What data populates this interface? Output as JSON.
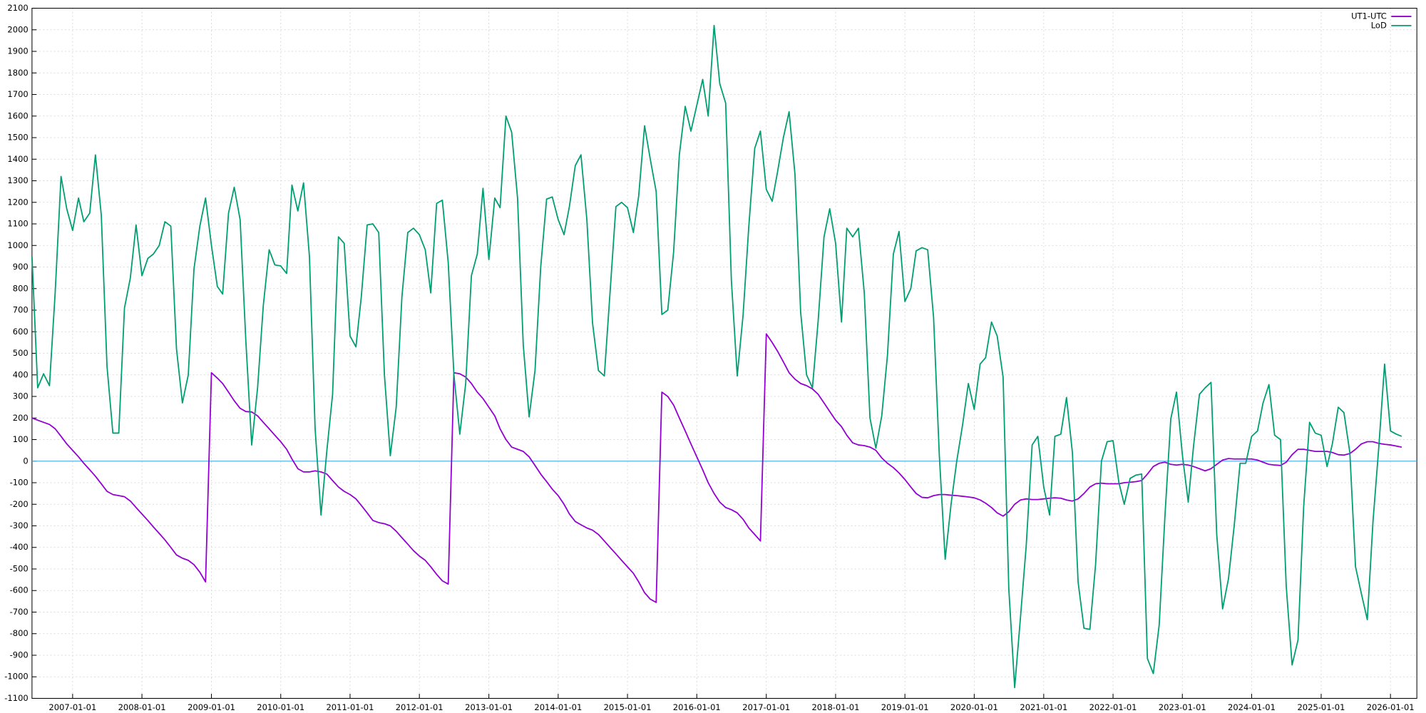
{
  "chart_data": {
    "type": "line",
    "x": [
      "2006-06-01",
      "2006-07-01",
      "2006-08-01",
      "2006-09-01",
      "2006-10-01",
      "2006-11-01",
      "2006-12-01",
      "2007-01-01",
      "2007-02-01",
      "2007-03-01",
      "2007-04-01",
      "2007-05-01",
      "2007-06-01",
      "2007-07-01",
      "2007-08-01",
      "2007-09-01",
      "2007-10-01",
      "2007-11-01",
      "2007-12-01",
      "2008-01-01",
      "2008-02-01",
      "2008-03-01",
      "2008-04-01",
      "2008-05-01",
      "2008-06-01",
      "2008-07-01",
      "2008-08-01",
      "2008-09-01",
      "2008-10-01",
      "2008-11-01",
      "2008-12-01",
      "2009-01-01",
      "2009-02-01",
      "2009-03-01",
      "2009-04-01",
      "2009-05-01",
      "2009-06-01",
      "2009-07-01",
      "2009-08-01",
      "2009-09-01",
      "2009-10-01",
      "2009-11-01",
      "2009-12-01",
      "2010-01-01",
      "2010-02-01",
      "2010-03-01",
      "2010-04-01",
      "2010-05-01",
      "2010-06-01",
      "2010-07-01",
      "2010-08-01",
      "2010-09-01",
      "2010-10-01",
      "2010-11-01",
      "2010-12-01",
      "2011-01-01",
      "2011-02-01",
      "2011-03-01",
      "2011-04-01",
      "2011-05-01",
      "2011-06-01",
      "2011-07-01",
      "2011-08-01",
      "2011-09-01",
      "2011-10-01",
      "2011-11-01",
      "2011-12-01",
      "2012-01-01",
      "2012-02-01",
      "2012-03-01",
      "2012-04-01",
      "2012-05-01",
      "2012-06-01",
      "2012-07-01",
      "2012-08-01",
      "2012-09-01",
      "2012-10-01",
      "2012-11-01",
      "2012-12-01",
      "2013-01-01",
      "2013-02-01",
      "2013-03-01",
      "2013-04-01",
      "2013-05-01",
      "2013-06-01",
      "2013-07-01",
      "2013-08-01",
      "2013-09-01",
      "2013-10-01",
      "2013-11-01",
      "2013-12-01",
      "2014-01-01",
      "2014-02-01",
      "2014-03-01",
      "2014-04-01",
      "2014-05-01",
      "2014-06-01",
      "2014-07-01",
      "2014-08-01",
      "2014-09-01",
      "2014-10-01",
      "2014-11-01",
      "2014-12-01",
      "2015-01-01",
      "2015-02-01",
      "2015-03-01",
      "2015-04-01",
      "2015-05-01",
      "2015-06-01",
      "2015-07-01",
      "2015-08-01",
      "2015-09-01",
      "2015-10-01",
      "2015-11-01",
      "2015-12-01",
      "2016-01-01",
      "2016-02-01",
      "2016-03-01",
      "2016-04-01",
      "2016-05-01",
      "2016-06-01",
      "2016-07-01",
      "2016-08-01",
      "2016-09-01",
      "2016-10-01",
      "2016-11-01",
      "2016-12-01",
      "2017-01-01",
      "2017-02-01",
      "2017-03-01",
      "2017-04-01",
      "2017-05-01",
      "2017-06-01",
      "2017-07-01",
      "2017-08-01",
      "2017-09-01",
      "2017-10-01",
      "2017-11-01",
      "2017-12-01",
      "2018-01-01",
      "2018-02-01",
      "2018-03-01",
      "2018-04-01",
      "2018-05-01",
      "2018-06-01",
      "2018-07-01",
      "2018-08-01",
      "2018-09-01",
      "2018-10-01",
      "2018-11-01",
      "2018-12-01",
      "2019-01-01",
      "2019-02-01",
      "2019-03-01",
      "2019-04-01",
      "2019-05-01",
      "2019-06-01",
      "2019-07-01",
      "2019-08-01",
      "2019-09-01",
      "2019-10-01",
      "2019-11-01",
      "2019-12-01",
      "2020-01-01",
      "2020-02-01",
      "2020-03-01",
      "2020-04-01",
      "2020-05-01",
      "2020-06-01",
      "2020-07-01",
      "2020-08-01",
      "2020-09-01",
      "2020-10-01",
      "2020-11-01",
      "2020-12-01",
      "2021-01-01",
      "2021-02-01",
      "2021-03-01",
      "2021-04-01",
      "2021-05-01",
      "2021-06-01",
      "2021-07-01",
      "2021-08-01",
      "2021-09-01",
      "2021-10-01",
      "2021-11-01",
      "2021-12-01",
      "2022-01-01",
      "2022-02-01",
      "2022-03-01",
      "2022-04-01",
      "2022-05-01",
      "2022-06-01",
      "2022-07-01",
      "2022-08-01",
      "2022-09-01",
      "2022-10-01",
      "2022-11-01",
      "2022-12-01",
      "2023-01-01",
      "2023-02-01",
      "2023-03-01",
      "2023-04-01",
      "2023-05-01",
      "2023-06-01",
      "2023-07-01",
      "2023-08-01",
      "2023-09-01",
      "2023-10-01",
      "2023-11-01",
      "2023-12-01",
      "2024-01-01",
      "2024-02-01",
      "2024-03-01",
      "2024-04-01",
      "2024-05-01",
      "2024-06-01",
      "2024-07-01",
      "2024-08-01",
      "2024-09-01",
      "2024-10-01",
      "2024-11-01",
      "2024-12-01",
      "2025-01-01",
      "2025-02-01",
      "2025-03-01",
      "2025-04-01",
      "2025-05-01",
      "2025-06-01",
      "2025-07-01",
      "2025-08-01",
      "2025-09-01",
      "2025-10-01",
      "2025-11-01",
      "2025-12-01",
      "2026-01-01",
      "2026-02-01",
      "2026-03-01"
    ],
    "series": [
      {
        "name": "UT1-UTC",
        "color": "#9400d3",
        "values": [
          200,
          190,
          180,
          170,
          150,
          115,
          80,
          50,
          20,
          -10,
          -40,
          -70,
          -105,
          -140,
          -155,
          -160,
          -165,
          -185,
          -215,
          -245,
          -275,
          -305,
          -335,
          -365,
          -400,
          -435,
          -450,
          -460,
          -480,
          -515,
          -560,
          410,
          385,
          360,
          320,
          280,
          245,
          230,
          228,
          210,
          180,
          150,
          120,
          90,
          55,
          10,
          -35,
          -50,
          -50,
          -45,
          -50,
          -60,
          -90,
          -120,
          -140,
          -155,
          -175,
          -205,
          -240,
          -275,
          -285,
          -290,
          -300,
          -325,
          -355,
          -385,
          -415,
          -440,
          -460,
          -490,
          -525,
          -555,
          -570,
          410,
          405,
          390,
          360,
          320,
          290,
          250,
          210,
          150,
          100,
          65,
          55,
          45,
          20,
          -20,
          -60,
          -95,
          -130,
          -160,
          -200,
          -245,
          -280,
          -295,
          -310,
          -320,
          -340,
          -370,
          -400,
          -430,
          -460,
          -490,
          -520,
          -560,
          -610,
          -640,
          -655,
          320,
          300,
          260,
          200,
          140,
          80,
          20,
          -40,
          -100,
          -150,
          -190,
          -215,
          -225,
          -240,
          -270,
          -310,
          -340,
          -370,
          590,
          550,
          510,
          460,
          410,
          380,
          360,
          350,
          335,
          310,
          270,
          230,
          190,
          160,
          120,
          85,
          75,
          72,
          65,
          50,
          15,
          -10,
          -30,
          -55,
          -85,
          -120,
          -150,
          -168,
          -170,
          -160,
          -155,
          -155,
          -158,
          -160,
          -163,
          -166,
          -170,
          -180,
          -195,
          -215,
          -240,
          -255,
          -235,
          -200,
          -180,
          -175,
          -178,
          -178,
          -175,
          -172,
          -170,
          -172,
          -180,
          -185,
          -175,
          -150,
          -120,
          -105,
          -102,
          -105,
          -105,
          -105,
          -100,
          -98,
          -95,
          -90,
          -60,
          -25,
          -10,
          -5,
          -15,
          -18,
          -15,
          -18,
          -25,
          -35,
          -45,
          -35,
          -15,
          5,
          12,
          10,
          10,
          10,
          10,
          5,
          -5,
          -15,
          -18,
          -20,
          -5,
          30,
          55,
          55,
          50,
          45,
          45,
          45,
          40,
          30,
          28,
          35,
          55,
          80,
          90,
          90,
          82,
          78,
          75,
          70,
          65
        ]
      },
      {
        "name": "LoD",
        "color": "#009e73",
        "values": [
          950,
          340,
          405,
          350,
          780,
          1320,
          1170,
          1070,
          1220,
          1110,
          1150,
          1420,
          1140,
          440,
          130,
          130,
          710,
          850,
          1095,
          860,
          940,
          960,
          1000,
          1110,
          1090,
          520,
          270,
          400,
          890,
          1090,
          1220,
          1000,
          810,
          775,
          1150,
          1270,
          1120,
          560,
          75,
          340,
          720,
          980,
          910,
          905,
          870,
          1280,
          1160,
          1290,
          950,
          150,
          -250,
          50,
          310,
          1040,
          1010,
          580,
          530,
          760,
          1095,
          1100,
          1060,
          400,
          25,
          250,
          760,
          1060,
          1080,
          1050,
          980,
          780,
          1195,
          1210,
          920,
          400,
          125,
          360,
          860,
          960,
          1265,
          935,
          1220,
          1175,
          1600,
          1525,
          1220,
          540,
          205,
          420,
          900,
          1215,
          1225,
          1120,
          1050,
          1180,
          1370,
          1420,
          1120,
          640,
          420,
          395,
          780,
          1180,
          1200,
          1175,
          1060,
          1230,
          1555,
          1400,
          1250,
          680,
          700,
          970,
          1420,
          1645,
          1530,
          1650,
          1770,
          1600,
          2020,
          1750,
          1660,
          840,
          395,
          680,
          1090,
          1450,
          1530,
          1260,
          1205,
          1340,
          1500,
          1620,
          1330,
          690,
          400,
          340,
          650,
          1040,
          1170,
          1010,
          645,
          1080,
          1040,
          1080,
          780,
          200,
          60,
          210,
          490,
          960,
          1065,
          740,
          800,
          975,
          990,
          980,
          665,
          30,
          -455,
          -200,
          0,
          170,
          360,
          240,
          450,
          480,
          645,
          580,
          390,
          -590,
          -1050,
          -720,
          -390,
          75,
          115,
          -120,
          -250,
          115,
          125,
          295,
          40,
          -560,
          -775,
          -780,
          -480,
          0,
          90,
          95,
          -100,
          -200,
          -80,
          -65,
          -60,
          -915,
          -985,
          -760,
          -260,
          195,
          320,
          30,
          -190,
          70,
          310,
          340,
          365,
          -340,
          -685,
          -545,
          -300,
          -10,
          -10,
          115,
          140,
          270,
          355,
          120,
          100,
          -580,
          -945,
          -830,
          -210,
          180,
          130,
          120,
          -25,
          80,
          250,
          225,
          40,
          -490,
          -615,
          -735,
          -280,
          70,
          450,
          140,
          125,
          115
        ]
      }
    ],
    "xlim": [
      "2006-06-01",
      "2026-05-20"
    ],
    "xticks": [
      "2007-01-01",
      "2008-01-01",
      "2009-01-01",
      "2010-01-01",
      "2011-01-01",
      "2012-01-01",
      "2013-01-01",
      "2014-01-01",
      "2015-01-01",
      "2016-01-01",
      "2017-01-01",
      "2018-01-01",
      "2019-01-01",
      "2020-01-01",
      "2021-01-01",
      "2022-01-01",
      "2023-01-01",
      "2024-01-01",
      "2025-01-01",
      "2026-01-01"
    ],
    "ylim": [
      -1100,
      2100
    ],
    "yticks": [
      -1100,
      -1000,
      -900,
      -800,
      -700,
      -600,
      -500,
      -400,
      -300,
      -200,
      -100,
      0,
      100,
      200,
      300,
      400,
      500,
      600,
      700,
      800,
      900,
      1000,
      1100,
      1200,
      1300,
      1400,
      1500,
      1600,
      1700,
      1800,
      1900,
      2000,
      2100
    ],
    "grid": true,
    "zero_line_color": "#56b4e9",
    "legend": "top-right"
  }
}
